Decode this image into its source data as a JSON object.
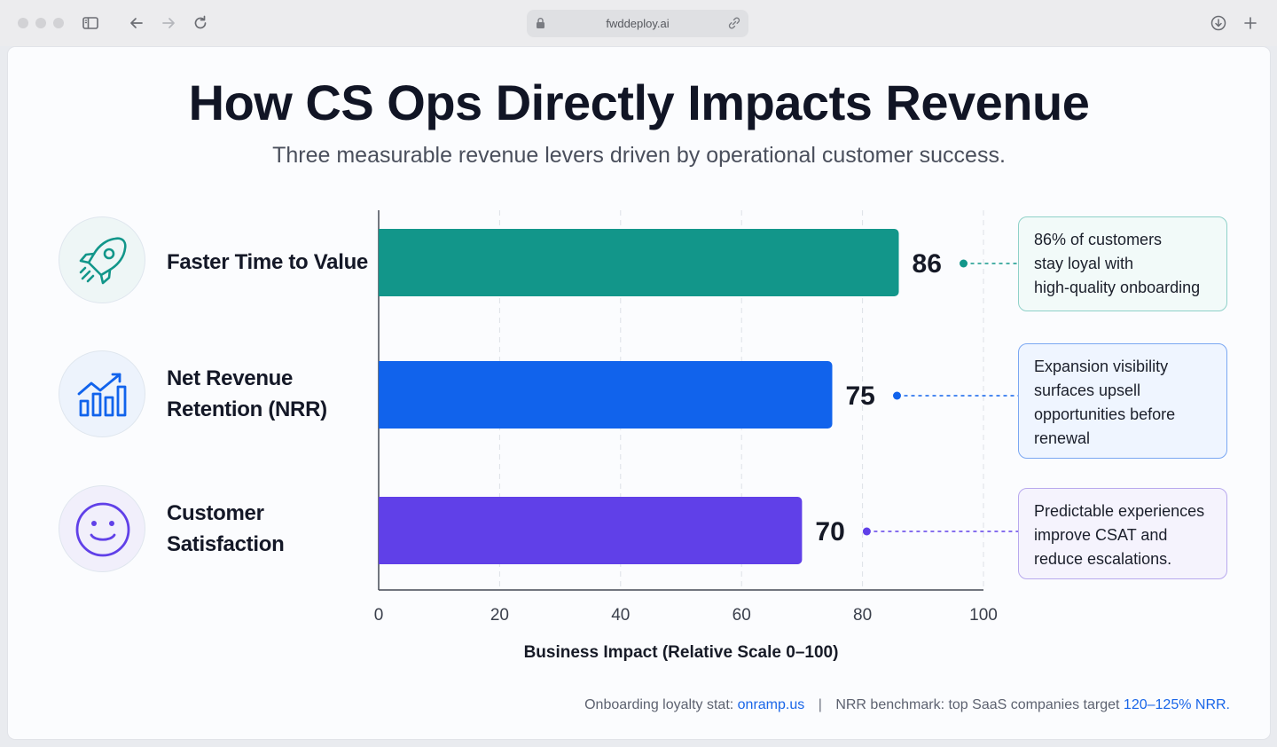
{
  "browser": {
    "url": "fwddeploy.ai"
  },
  "page": {
    "title": "How CS Ops Directly Impacts Revenue",
    "subtitle": "Three measurable revenue levers driven by operational customer success."
  },
  "levers": [
    {
      "label_line1": "Faster Time to Value",
      "label_line2": "",
      "icon": "rocket-icon",
      "color": "#12968a",
      "note": [
        "86% of customers",
        "stay loyal with",
        "high-quality onboarding"
      ]
    },
    {
      "label_line1": "Net Revenue",
      "label_line2": "Retention (NRR)",
      "icon": "growth-chart-icon",
      "color": "#1163ec",
      "note": [
        "Expansion visibility",
        "surfaces upsell",
        "opportunities before",
        "renewal"
      ]
    },
    {
      "label_line1": "Customer",
      "label_line2": "Satisfaction",
      "icon": "smiley-face-icon",
      "color": "#6040e8",
      "note": [
        "Predictable experiences",
        "improve CSAT and",
        "reduce escalations."
      ]
    }
  ],
  "chart_data": {
    "type": "bar",
    "orientation": "horizontal",
    "categories": [
      "Faster Time to Value",
      "Net Revenue Retention (NRR)",
      "Customer Satisfaction"
    ],
    "values": [
      86,
      75,
      70
    ],
    "colors": [
      "#12968a",
      "#1163ec",
      "#6040e8"
    ],
    "xlabel": "Business Impact (Relative Scale 0–100)",
    "xlim": [
      0,
      100
    ],
    "xticks": [
      0,
      20,
      40,
      60,
      80,
      100
    ],
    "grid": "vertical dashed"
  },
  "footer": {
    "prefix1": "Onboarding loyalty stat:",
    "link1": "onramp.us",
    "separator": "|",
    "prefix2": "NRR benchmark: top SaaS companies target",
    "link2": "120–125% NRR."
  }
}
